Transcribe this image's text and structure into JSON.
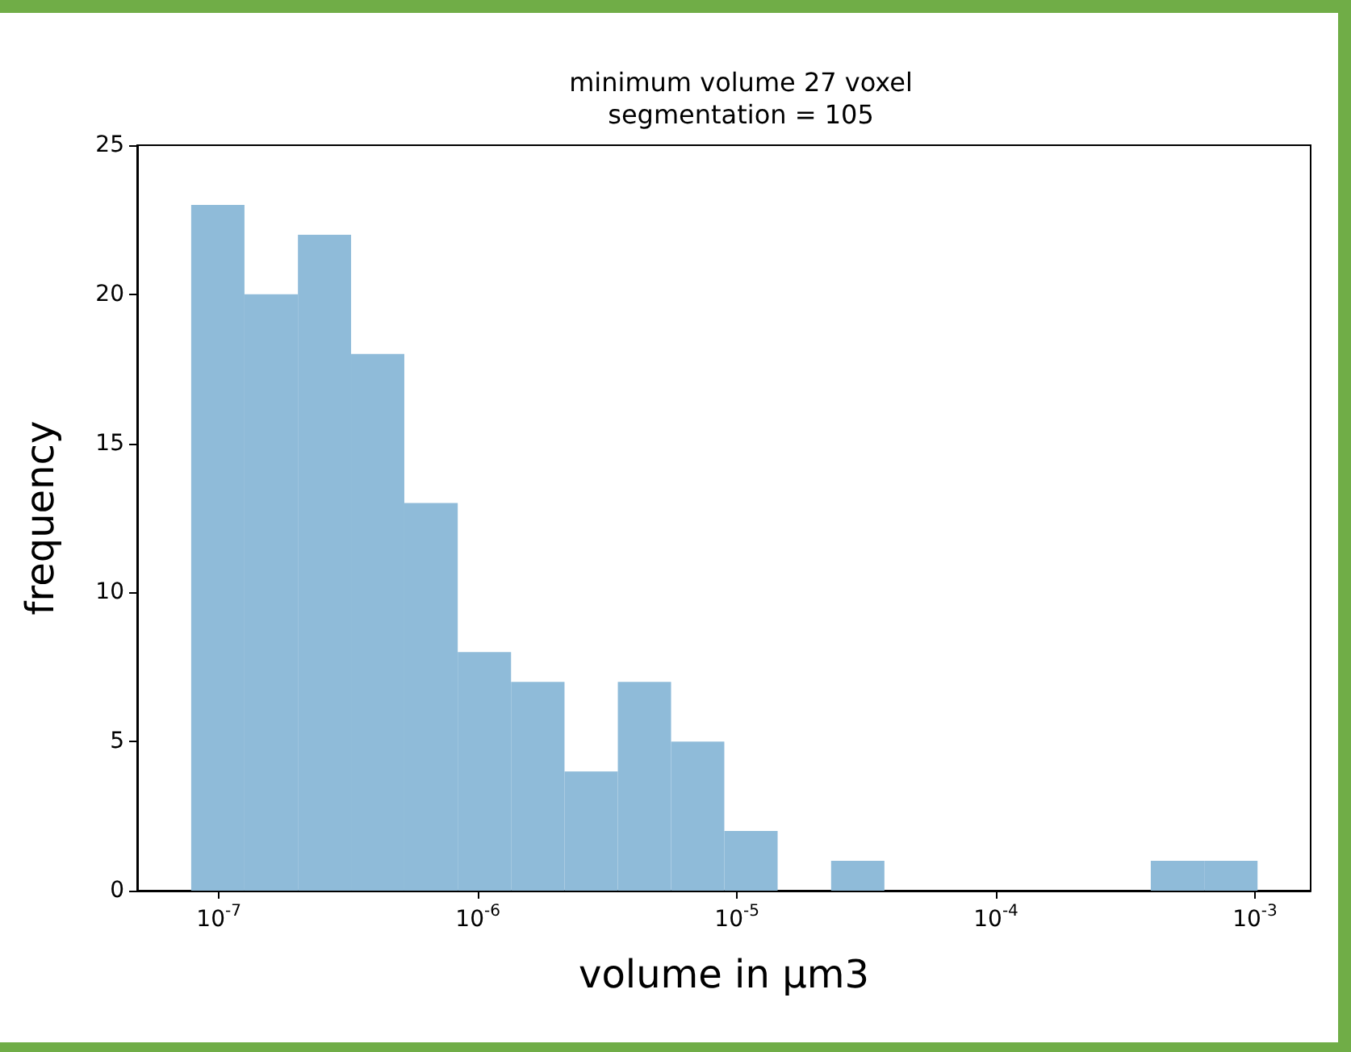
{
  "chart_data": {
    "type": "histogram",
    "title": "minimum volume 27 voxel\nsegmentation = 105",
    "xlabel": "volume in µm3",
    "ylabel": "frequency",
    "bins": [
      7.82e-08,
      1.256e-07,
      2.02e-07,
      3.24e-07,
      5.2e-07,
      8.36e-07,
      1.343e-06,
      2.16e-06,
      3.47e-06,
      5.57e-06,
      8.94e-06,
      1.436e-05,
      2.31e-05,
      3.71e-05,
      5.96e-05,
      9.57e-05,
      0.0001535,
      0.000247,
      0.000396,
      0.000637,
      0.001023
    ],
    "values": [
      23,
      20,
      22,
      18,
      13,
      8,
      7,
      4,
      7,
      5,
      2,
      0,
      1,
      0,
      0,
      0,
      0,
      0,
      1,
      1
    ],
    "color": "#8fbbd9",
    "log": "x",
    "grid": false,
    "xlim": [
      4.84e-08,
      0.00164
    ],
    "xticks": [
      {
        "value": 1e-07,
        "label": "10$^{-7}$"
      },
      {
        "value": 1e-06,
        "label": "10$^{-6}$"
      },
      {
        "value": 1e-05,
        "label": "10$^{-5}$"
      },
      {
        "value": 0.0001,
        "label": "10$^{-4}$"
      },
      {
        "value": 0.001,
        "label": "10$^{-3}$"
      }
    ],
    "ylim": [
      0,
      25
    ],
    "yticks": [
      0,
      5,
      10,
      15,
      20,
      25
    ]
  }
}
